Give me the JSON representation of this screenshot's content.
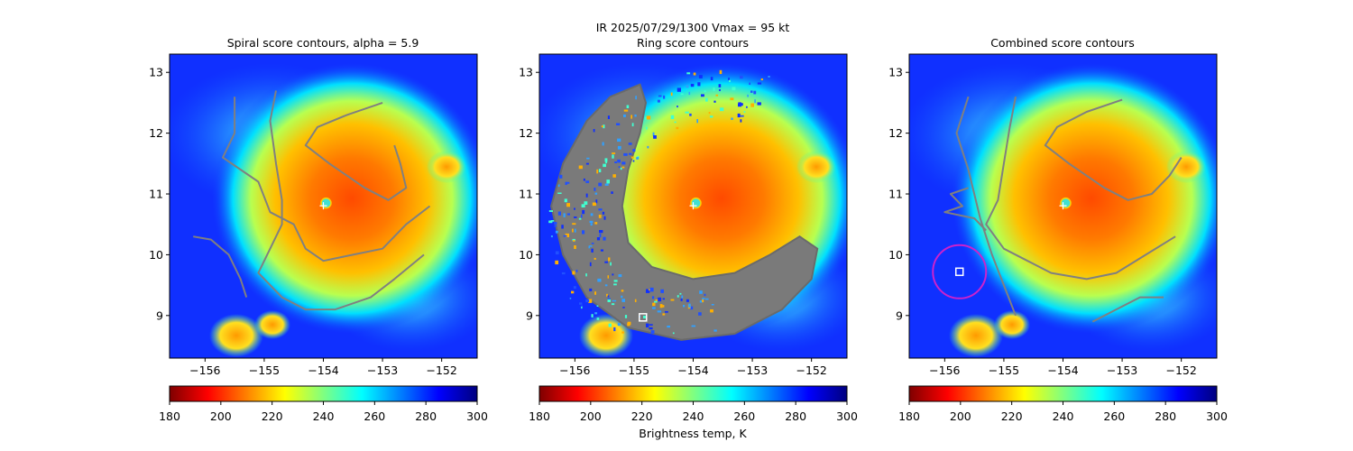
{
  "figure": {
    "suptitle_line1": "IR  2025/07/29/1300    Vmax = 95 kt",
    "colorbar_label": "Brightness temp, K"
  },
  "chart_data": [
    {
      "type": "heatmap",
      "title": "Spiral score contours, alpha =  5.9",
      "variable": "IR brightness temperature (K)",
      "xlim": [
        -156.6,
        -151.4
      ],
      "ylim": [
        8.3,
        13.3
      ],
      "xticks": [
        -156,
        -155,
        -154,
        -153,
        -152
      ],
      "xtick_labels": [
        "−156",
        "−155",
        "−154",
        "−153",
        "−152"
      ],
      "yticks": [
        9,
        10,
        11,
        12,
        13
      ],
      "ytick_labels": [
        "9",
        "10",
        "11",
        "12",
        "13"
      ],
      "storm_center": [
        -154.0,
        10.85
      ],
      "center_marker_color": "#ffffff",
      "contour_color": "#808080",
      "contours": [
        [
          [
            -155.5,
            12.6
          ],
          [
            -155.5,
            12.0
          ],
          [
            -155.7,
            11.6
          ],
          [
            -155.1,
            11.2
          ],
          [
            -154.9,
            10.7
          ],
          [
            -154.5,
            10.5
          ],
          [
            -154.3,
            10.1
          ],
          [
            -154.0,
            9.9
          ],
          [
            -153.5,
            10.0
          ],
          [
            -153.0,
            10.1
          ],
          [
            -152.6,
            10.5
          ],
          [
            -152.2,
            10.8
          ]
        ],
        [
          [
            -154.8,
            12.7
          ],
          [
            -154.9,
            12.2
          ],
          [
            -154.8,
            11.5
          ],
          [
            -154.7,
            10.9
          ],
          [
            -154.7,
            10.5
          ],
          [
            -154.9,
            10.1
          ],
          [
            -155.1,
            9.7
          ],
          [
            -154.7,
            9.3
          ],
          [
            -154.3,
            9.1
          ],
          [
            -153.8,
            9.1
          ],
          [
            -153.2,
            9.3
          ],
          [
            -152.8,
            9.6
          ],
          [
            -152.3,
            10.0
          ]
        ],
        [
          [
            -153.0,
            12.5
          ],
          [
            -153.6,
            12.3
          ],
          [
            -154.1,
            12.1
          ],
          [
            -154.3,
            11.8
          ],
          [
            -153.9,
            11.5
          ],
          [
            -153.3,
            11.1
          ],
          [
            -152.9,
            10.9
          ],
          [
            -152.6,
            11.1
          ],
          [
            -152.7,
            11.5
          ],
          [
            -152.8,
            11.8
          ]
        ],
        [
          [
            -156.2,
            10.3
          ],
          [
            -155.9,
            10.25
          ],
          [
            -155.6,
            10.0
          ],
          [
            -155.4,
            9.6
          ],
          [
            -155.3,
            9.3
          ]
        ]
      ],
      "markers": []
    },
    {
      "type": "heatmap",
      "title": "Ring score contours",
      "variable": "IR brightness temperature (K)",
      "xlim": [
        -156.6,
        -151.4
      ],
      "ylim": [
        8.3,
        13.3
      ],
      "xticks": [
        -156,
        -155,
        -154,
        -153,
        -152
      ],
      "xtick_labels": [
        "−156",
        "−155",
        "−154",
        "−153",
        "−152"
      ],
      "yticks": [
        9,
        10,
        11,
        12,
        13
      ],
      "ytick_labels": [
        "9",
        "10",
        "11",
        "12",
        "13"
      ],
      "storm_center": [
        -154.0,
        10.85
      ],
      "center_marker_color": "#ffffff",
      "contour_color": "#808080",
      "ring_region": {
        "outer": [
          [
            -154.9,
            12.8
          ],
          [
            -155.4,
            12.6
          ],
          [
            -155.8,
            12.2
          ],
          [
            -156.2,
            11.5
          ],
          [
            -156.4,
            10.8
          ],
          [
            -156.2,
            10.0
          ],
          [
            -155.8,
            9.3
          ],
          [
            -155.1,
            8.8
          ],
          [
            -154.2,
            8.6
          ],
          [
            -153.3,
            8.7
          ],
          [
            -152.5,
            9.1
          ],
          [
            -152.0,
            9.6
          ],
          [
            -151.9,
            10.1
          ],
          [
            -152.2,
            10.3
          ],
          [
            -152.7,
            10.0
          ],
          [
            -153.3,
            9.7
          ],
          [
            -154.0,
            9.6
          ],
          [
            -154.7,
            9.8
          ],
          [
            -155.1,
            10.2
          ],
          [
            -155.2,
            10.8
          ],
          [
            -155.1,
            11.4
          ],
          [
            -154.9,
            12.0
          ],
          [
            -154.8,
            12.5
          ]
        ]
      },
      "markers": [
        {
          "shape": "square",
          "position": [
            -154.85,
            8.97
          ],
          "color": "#ffffff"
        }
      ]
    },
    {
      "type": "heatmap",
      "title": "Combined score contours",
      "variable": "IR brightness temperature (K)",
      "xlim": [
        -156.6,
        -151.4
      ],
      "ylim": [
        8.3,
        13.3
      ],
      "xticks": [
        -156,
        -155,
        -154,
        -153,
        -152
      ],
      "xtick_labels": [
        "−156",
        "−155",
        "−154",
        "−153",
        "−152"
      ],
      "yticks": [
        9,
        10,
        11,
        12,
        13
      ],
      "ytick_labels": [
        "9",
        "10",
        "11",
        "12",
        "13"
      ],
      "storm_center": [
        -154.0,
        10.85
      ],
      "center_marker_color": "#ffffff",
      "contour_color": "#808080",
      "contours": [
        [
          [
            -154.8,
            12.6
          ],
          [
            -154.9,
            12.1
          ],
          [
            -155.0,
            11.5
          ],
          [
            -155.1,
            10.9
          ],
          [
            -155.3,
            10.5
          ],
          [
            -155.0,
            10.1
          ],
          [
            -154.6,
            9.9
          ],
          [
            -154.2,
            9.7
          ],
          [
            -153.6,
            9.6
          ],
          [
            -153.1,
            9.7
          ],
          [
            -152.6,
            10.0
          ],
          [
            -152.1,
            10.3
          ]
        ],
        [
          [
            -153.0,
            12.55
          ],
          [
            -153.6,
            12.35
          ],
          [
            -154.1,
            12.1
          ],
          [
            -154.3,
            11.8
          ],
          [
            -153.9,
            11.5
          ],
          [
            -153.3,
            11.1
          ],
          [
            -152.9,
            10.9
          ],
          [
            -152.5,
            11.0
          ],
          [
            -152.2,
            11.3
          ],
          [
            -152.0,
            11.6
          ]
        ],
        [
          [
            -155.6,
            11.1
          ],
          [
            -155.9,
            11.0
          ],
          [
            -155.7,
            10.8
          ],
          [
            -156.0,
            10.7
          ],
          [
            -155.5,
            10.6
          ],
          [
            -155.3,
            10.4
          ]
        ],
        [
          [
            -155.6,
            12.6
          ],
          [
            -155.8,
            12.0
          ],
          [
            -155.6,
            11.4
          ],
          [
            -155.4,
            10.6
          ],
          [
            -155.2,
            10.0
          ],
          [
            -155.0,
            9.5
          ],
          [
            -154.8,
            9.0
          ]
        ],
        [
          [
            -153.5,
            8.9
          ],
          [
            -153.1,
            9.1
          ],
          [
            -152.7,
            9.3
          ],
          [
            -152.3,
            9.3
          ]
        ]
      ],
      "markers": [
        {
          "shape": "circle",
          "center": [
            -155.75,
            9.72
          ],
          "radius_deg": 0.45,
          "color": "#cc22cc"
        },
        {
          "shape": "square",
          "position": [
            -155.75,
            9.72
          ],
          "color": "#ffffff"
        }
      ]
    }
  ],
  "colorbar": {
    "colormap": "jet_r",
    "range": [
      180,
      300
    ],
    "ticks": [
      "180",
      "200",
      "220",
      "240",
      "260",
      "280",
      "300"
    ],
    "stops": [
      "#7f0000",
      "#ff0000",
      "#ff8000",
      "#ffff00",
      "#80ff80",
      "#00ffff",
      "#0080ff",
      "#0000ff",
      "#00007f"
    ]
  },
  "colors": {
    "cold_background": "#1030ff",
    "warm_core": "#ff4000"
  }
}
